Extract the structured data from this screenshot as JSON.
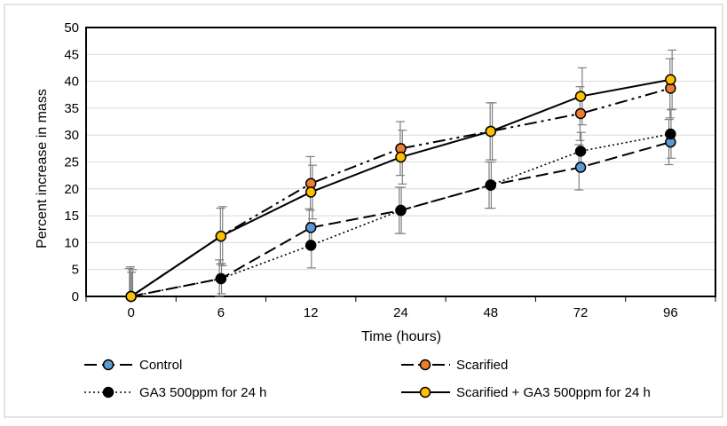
{
  "chart_data": {
    "type": "line",
    "title": "",
    "xlabel": "Time (hours)",
    "ylabel": "Percent increase in mass",
    "categories": [
      "0",
      "6",
      "12",
      "24",
      "48",
      "72",
      "96"
    ],
    "ylim": [
      0,
      50
    ],
    "yticks": [
      "0",
      "5",
      "10",
      "15",
      "20",
      "25",
      "30",
      "35",
      "40",
      "45",
      "50"
    ],
    "grid": "horizontal",
    "legend_position": "bottom",
    "series": [
      {
        "name": "Control",
        "values": [
          0,
          3.3,
          12.8,
          16,
          20.7,
          24,
          28.7
        ],
        "errors": [
          5.2,
          3.5,
          3.5,
          4.3,
          4.3,
          4.2,
          4.2
        ],
        "line_style": "dash",
        "line_color": "#000000",
        "marker_fill": "#5b9bd5"
      },
      {
        "name": "Scarified",
        "values": [
          0,
          11.2,
          21,
          27.5,
          30.7,
          34,
          38.7
        ],
        "errors": [
          5.5,
          5.2,
          5,
          5,
          5.3,
          5,
          5.5
        ],
        "line_style": "dash-dot",
        "line_color": "#000000",
        "marker_fill": "#ed7d31"
      },
      {
        "name": "GA3 500ppm for 24 h",
        "values": [
          0,
          3.3,
          9.5,
          16,
          20.7,
          27,
          30.2
        ],
        "errors": [
          4.5,
          2.8,
          4.2,
          4.3,
          4.3,
          3.5,
          4.5
        ],
        "line_style": "dot",
        "line_color": "#000000",
        "marker_fill": "#000000"
      },
      {
        "name": "Scarified + GA3 500ppm for 24 h",
        "values": [
          0,
          11.2,
          19.4,
          25.9,
          30.7,
          37.2,
          40.3
        ],
        "errors": [
          5,
          5.5,
          5,
          5,
          5.3,
          5.3,
          5.5
        ],
        "line_style": "solid",
        "line_color": "#000000",
        "marker_fill": "#ffc000"
      }
    ]
  }
}
